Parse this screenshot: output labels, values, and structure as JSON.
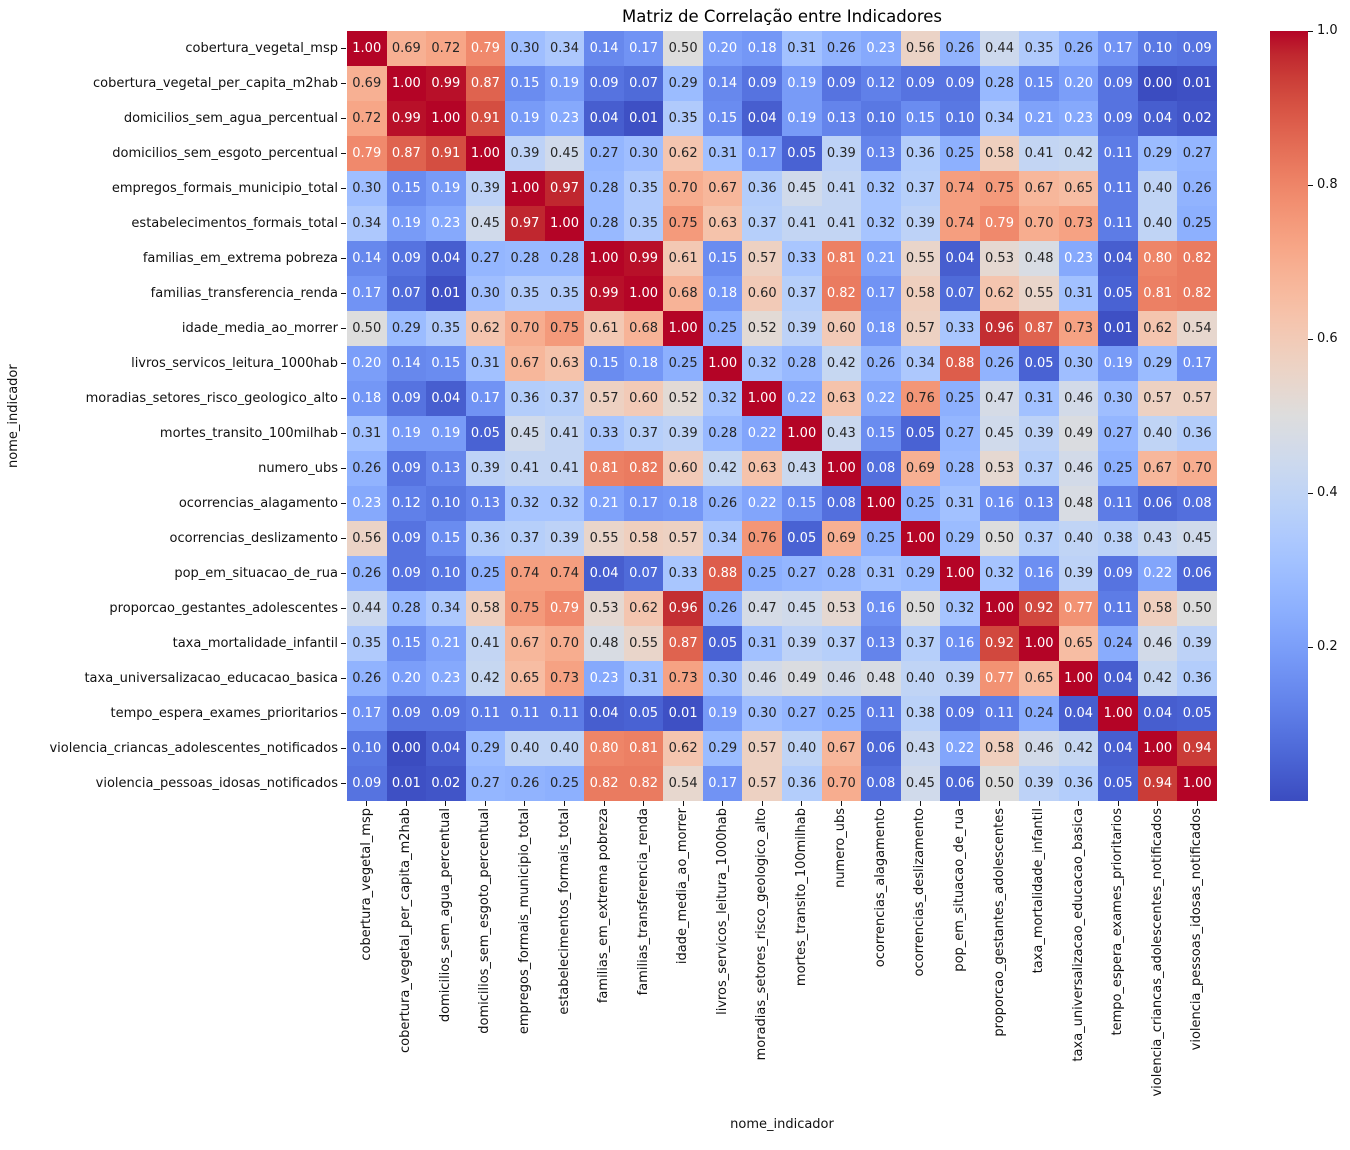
{
  "chart_data": {
    "type": "heatmap",
    "title": "Matriz de Correlação entre Indicadores",
    "xlabel": "nome_indicador",
    "ylabel": "nome_indicador",
    "colormap": "coolwarm",
    "vmin": 0.0,
    "vmax": 1.0,
    "value_format": "0.00",
    "legend_position": "right-colorbar",
    "colorbar_ticks": [
      "1.0",
      "0.8",
      "0.6",
      "0.4",
      "0.2"
    ],
    "colors": {
      "background": "#ffffff",
      "annotation_dark": "#262626",
      "annotation_light": "#ffffff",
      "cmap_low": "#3b4cc0",
      "cmap_mid": "#dddddd",
      "cmap_high": "#b40426"
    },
    "labels": [
      "cobertura_vegetal_msp",
      "cobertura_vegetal_per_capita_m2hab",
      "domicilios_sem_agua_percentual",
      "domicilios_sem_esgoto_percentual",
      "empregos_formais_municipio_total",
      "estabelecimentos_formais_total",
      "familias_em_extrema pobreza",
      "familias_transferencia_renda",
      "idade_media_ao_morrer",
      "livros_servicos_leitura_1000hab",
      "moradias_setores_risco_geologico_alto",
      "mortes_transito_100milhab",
      "numero_ubs",
      "ocorrencias_alagamento",
      "ocorrencias_deslizamento",
      "pop_em_situacao_de_rua",
      "proporcao_gestantes_adolescentes",
      "taxa_mortalidade_infantil",
      "taxa_universalizacao_educacao_basica",
      "tempo_espera_exames_prioritarios",
      "violencia_criancas_adolescentes_notificados",
      "violencia_pessoas_idosas_notificados"
    ],
    "values": [
      [
        1.0,
        0.69,
        0.72,
        0.79,
        0.3,
        0.34,
        0.14,
        0.17,
        0.5,
        0.2,
        0.18,
        0.31,
        0.26,
        0.23,
        0.56,
        0.26,
        0.44,
        0.35,
        0.26,
        0.17,
        0.1,
        0.09
      ],
      [
        0.69,
        1.0,
        0.99,
        0.87,
        0.15,
        0.19,
        0.09,
        0.07,
        0.29,
        0.14,
        0.09,
        0.19,
        0.09,
        0.12,
        0.09,
        0.09,
        0.28,
        0.15,
        0.2,
        0.09,
        0.0,
        0.01
      ],
      [
        0.72,
        0.99,
        1.0,
        0.91,
        0.19,
        0.23,
        0.04,
        0.01,
        0.35,
        0.15,
        0.04,
        0.19,
        0.13,
        0.1,
        0.15,
        0.1,
        0.34,
        0.21,
        0.23,
        0.09,
        0.04,
        0.02
      ],
      [
        0.79,
        0.87,
        0.91,
        1.0,
        0.39,
        0.45,
        0.27,
        0.3,
        0.62,
        0.31,
        0.17,
        0.05,
        0.39,
        0.13,
        0.36,
        0.25,
        0.58,
        0.41,
        0.42,
        0.11,
        0.29,
        0.27
      ],
      [
        0.3,
        0.15,
        0.19,
        0.39,
        1.0,
        0.97,
        0.28,
        0.35,
        0.7,
        0.67,
        0.36,
        0.45,
        0.41,
        0.32,
        0.37,
        0.74,
        0.75,
        0.67,
        0.65,
        0.11,
        0.4,
        0.26
      ],
      [
        0.34,
        0.19,
        0.23,
        0.45,
        0.97,
        1.0,
        0.28,
        0.35,
        0.75,
        0.63,
        0.37,
        0.41,
        0.41,
        0.32,
        0.39,
        0.74,
        0.79,
        0.7,
        0.73,
        0.11,
        0.4,
        0.25
      ],
      [
        0.14,
        0.09,
        0.04,
        0.27,
        0.28,
        0.28,
        1.0,
        0.99,
        0.61,
        0.15,
        0.57,
        0.33,
        0.81,
        0.21,
        0.55,
        0.04,
        0.53,
        0.48,
        0.23,
        0.04,
        0.8,
        0.82
      ],
      [
        0.17,
        0.07,
        0.01,
        0.3,
        0.35,
        0.35,
        0.99,
        1.0,
        0.68,
        0.18,
        0.6,
        0.37,
        0.82,
        0.17,
        0.58,
        0.07,
        0.62,
        0.55,
        0.31,
        0.05,
        0.81,
        0.82
      ],
      [
        0.5,
        0.29,
        0.35,
        0.62,
        0.7,
        0.75,
        0.61,
        0.68,
        1.0,
        0.25,
        0.52,
        0.39,
        0.6,
        0.18,
        0.57,
        0.33,
        0.96,
        0.87,
        0.73,
        0.01,
        0.62,
        0.54
      ],
      [
        0.2,
        0.14,
        0.15,
        0.31,
        0.67,
        0.63,
        0.15,
        0.18,
        0.25,
        1.0,
        0.32,
        0.28,
        0.42,
        0.26,
        0.34,
        0.88,
        0.26,
        0.05,
        0.3,
        0.19,
        0.29,
        0.17
      ],
      [
        0.18,
        0.09,
        0.04,
        0.17,
        0.36,
        0.37,
        0.57,
        0.6,
        0.52,
        0.32,
        1.0,
        0.22,
        0.63,
        0.22,
        0.76,
        0.25,
        0.47,
        0.31,
        0.46,
        0.3,
        0.57,
        0.57
      ],
      [
        0.31,
        0.19,
        0.19,
        0.05,
        0.45,
        0.41,
        0.33,
        0.37,
        0.39,
        0.28,
        0.22,
        1.0,
        0.43,
        0.15,
        0.05,
        0.27,
        0.45,
        0.39,
        0.49,
        0.27,
        0.4,
        0.36
      ],
      [
        0.26,
        0.09,
        0.13,
        0.39,
        0.41,
        0.41,
        0.81,
        0.82,
        0.6,
        0.42,
        0.63,
        0.43,
        1.0,
        0.08,
        0.69,
        0.28,
        0.53,
        0.37,
        0.46,
        0.25,
        0.67,
        0.7
      ],
      [
        0.23,
        0.12,
        0.1,
        0.13,
        0.32,
        0.32,
        0.21,
        0.17,
        0.18,
        0.26,
        0.22,
        0.15,
        0.08,
        1.0,
        0.25,
        0.31,
        0.16,
        0.13,
        0.48,
        0.11,
        0.06,
        0.08
      ],
      [
        0.56,
        0.09,
        0.15,
        0.36,
        0.37,
        0.39,
        0.55,
        0.58,
        0.57,
        0.34,
        0.76,
        0.05,
        0.69,
        0.25,
        1.0,
        0.29,
        0.5,
        0.37,
        0.4,
        0.38,
        0.43,
        0.45
      ],
      [
        0.26,
        0.09,
        0.1,
        0.25,
        0.74,
        0.74,
        0.04,
        0.07,
        0.33,
        0.88,
        0.25,
        0.27,
        0.28,
        0.31,
        0.29,
        1.0,
        0.32,
        0.16,
        0.39,
        0.09,
        0.22,
        0.06
      ],
      [
        0.44,
        0.28,
        0.34,
        0.58,
        0.75,
        0.79,
        0.53,
        0.62,
        0.96,
        0.26,
        0.47,
        0.45,
        0.53,
        0.16,
        0.5,
        0.32,
        1.0,
        0.92,
        0.77,
        0.11,
        0.58,
        0.5
      ],
      [
        0.35,
        0.15,
        0.21,
        0.41,
        0.67,
        0.7,
        0.48,
        0.55,
        0.87,
        0.05,
        0.31,
        0.39,
        0.37,
        0.13,
        0.37,
        0.16,
        0.92,
        1.0,
        0.65,
        0.24,
        0.46,
        0.39
      ],
      [
        0.26,
        0.2,
        0.23,
        0.42,
        0.65,
        0.73,
        0.23,
        0.31,
        0.73,
        0.3,
        0.46,
        0.49,
        0.46,
        0.48,
        0.4,
        0.39,
        0.77,
        0.65,
        1.0,
        0.04,
        0.42,
        0.36
      ],
      [
        0.17,
        0.09,
        0.09,
        0.11,
        0.11,
        0.11,
        0.04,
        0.05,
        0.01,
        0.19,
        0.3,
        0.27,
        0.25,
        0.11,
        0.38,
        0.09,
        0.11,
        0.24,
        0.04,
        1.0,
        0.04,
        0.05
      ],
      [
        0.1,
        0.0,
        0.04,
        0.29,
        0.4,
        0.4,
        0.8,
        0.81,
        0.62,
        0.29,
        0.57,
        0.4,
        0.67,
        0.06,
        0.43,
        0.22,
        0.58,
        0.46,
        0.42,
        0.04,
        1.0,
        0.94
      ],
      [
        0.09,
        0.01,
        0.02,
        0.27,
        0.26,
        0.25,
        0.82,
        0.82,
        0.54,
        0.17,
        0.57,
        0.36,
        0.7,
        0.08,
        0.45,
        0.06,
        0.5,
        0.39,
        0.36,
        0.05,
        0.94,
        1.0
      ]
    ]
  }
}
